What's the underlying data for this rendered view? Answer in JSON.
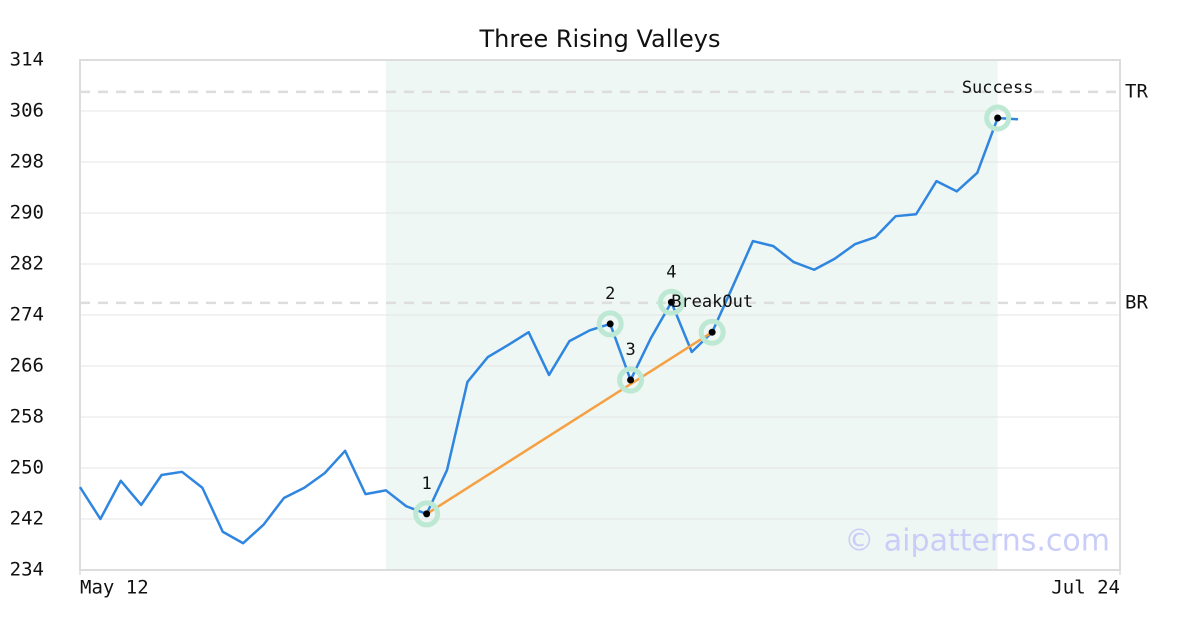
{
  "chart_data": {
    "type": "line",
    "title": "Three Rising Valleys",
    "x": [
      0,
      1,
      2,
      3,
      4,
      5,
      6,
      7,
      8,
      9,
      10,
      11,
      12,
      13,
      14,
      15,
      16,
      17,
      18,
      19,
      20,
      21,
      22,
      23,
      24,
      25,
      26,
      27,
      28,
      29,
      30,
      31,
      32,
      33,
      34,
      35,
      36,
      37,
      38,
      39,
      40,
      41,
      42,
      43,
      44,
      45,
      46
    ],
    "series": [
      {
        "name": "Price",
        "color": "#2f86e0",
        "values": [
          247.0,
          242.0,
          248.0,
          244.2,
          248.9,
          249.4,
          246.9,
          240.0,
          238.2,
          241.1,
          245.3,
          246.9,
          249.2,
          252.7,
          245.9,
          246.5,
          244.0,
          242.8,
          249.7,
          263.5,
          267.4,
          269.3,
          271.3,
          264.6,
          269.9,
          271.6,
          272.6,
          263.8,
          270.4,
          276.0,
          268.2,
          271.3,
          278.4,
          285.6,
          284.8,
          282.3,
          281.1,
          282.8,
          285.1,
          286.2,
          289.5,
          289.8,
          295.0,
          293.4,
          296.3,
          304.9,
          304.7
        ]
      }
    ],
    "xlim": [
      0,
      51
    ],
    "xticks": [
      {
        "value": 0,
        "label": "May 12"
      },
      {
        "value": 51,
        "label": "Jul 24"
      }
    ],
    "ylim": [
      234,
      314
    ],
    "yticks": [
      234,
      242,
      250,
      258,
      266,
      274,
      282,
      290,
      298,
      306,
      314
    ],
    "grid": true,
    "shaded_range": [
      15,
      45
    ],
    "shade_color": "#eef7f3",
    "reference_lines": [
      {
        "label": "TR",
        "value": 309.0
      },
      {
        "label": "BR",
        "value": 275.9
      }
    ],
    "annotations": [
      {
        "label": "1",
        "x": 17,
        "y": 242.8
      },
      {
        "label": "2",
        "x": 26,
        "y": 272.6
      },
      {
        "label": "3",
        "x": 27,
        "y": 263.8
      },
      {
        "label": "4",
        "x": 29,
        "y": 276.0
      },
      {
        "label": "BreakOut",
        "x": 31,
        "y": 271.3
      },
      {
        "label": "Success",
        "x": 45,
        "y": 304.9
      }
    ],
    "trend_line": {
      "from": 0,
      "to": 4,
      "color": "#f5a042"
    },
    "watermark": "© aipatterns.com"
  }
}
